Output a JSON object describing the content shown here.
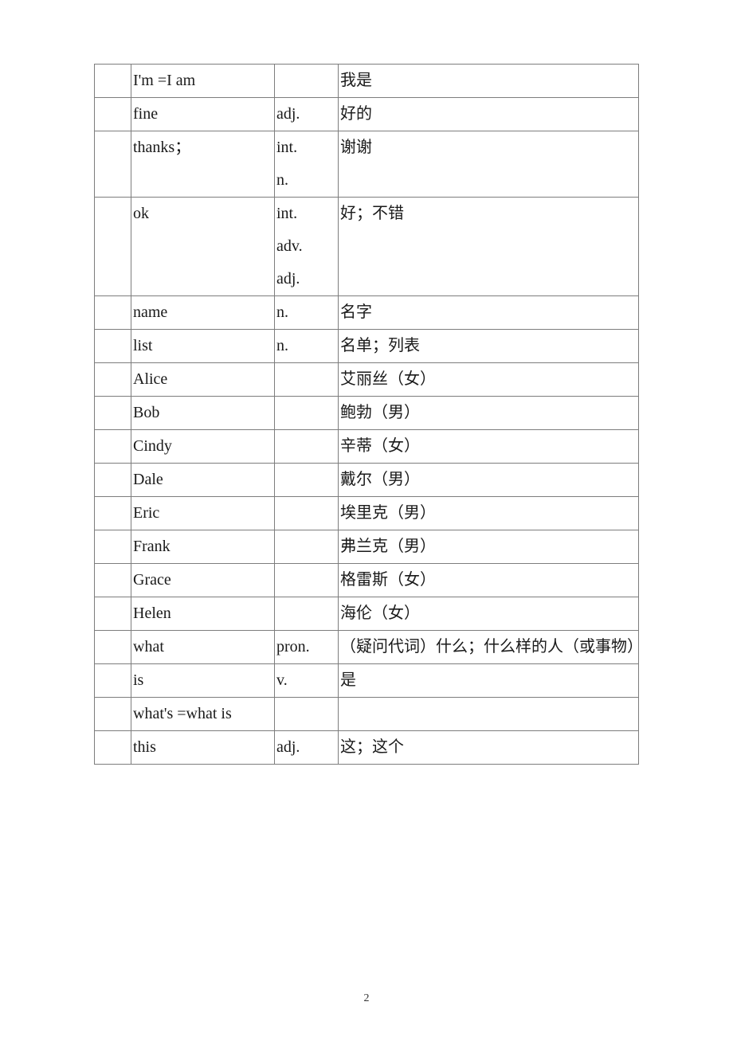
{
  "rows": [
    {
      "en": "I'm =I am",
      "pos": "",
      "zh": "我是"
    },
    {
      "en": "fine",
      "pos": "adj.",
      "zh": "好的"
    },
    {
      "en": "thanks；",
      "pos": "int. n.",
      "zh": "谢谢"
    },
    {
      "en": "ok",
      "pos": "int. adv. adj.",
      "zh": "好；不错"
    },
    {
      "en": "name",
      "pos": "n.",
      "zh": "名字"
    },
    {
      "en": "list",
      "pos": "n.",
      "zh": "名单；列表"
    },
    {
      "en": "Alice",
      "pos": "",
      "zh": "艾丽丝（女）"
    },
    {
      "en": "Bob",
      "pos": "",
      "zh": "鲍勃（男）"
    },
    {
      "en": "Cindy",
      "pos": "",
      "zh": "辛蒂（女）"
    },
    {
      "en": "Dale",
      "pos": "",
      "zh": "戴尔（男）"
    },
    {
      "en": "Eric",
      "pos": "",
      "zh": "埃里克（男）"
    },
    {
      "en": "Frank",
      "pos": "",
      "zh": "弗兰克（男）"
    },
    {
      "en": "Grace",
      "pos": "",
      "zh": "格雷斯（女）"
    },
    {
      "en": "Helen",
      "pos": "",
      "zh": "海伦（女）"
    },
    {
      "en": "what",
      "pos": "pron.",
      "zh": "（疑问代词）什么；什么样的人（或事物）"
    },
    {
      "en": "is",
      "pos": "v.",
      "zh": "是"
    },
    {
      "en": "what's =what is",
      "pos": "",
      "zh": ""
    },
    {
      "en": "this",
      "pos": "adj.",
      "zh": "这；这个"
    }
  ],
  "page_number": "2",
  "colors": {
    "border": "#7d7d7d",
    "text": "#1a1a1a",
    "background": "#ffffff"
  },
  "font": {
    "family": "Times New Roman / SimSun",
    "size_pt": 15
  }
}
